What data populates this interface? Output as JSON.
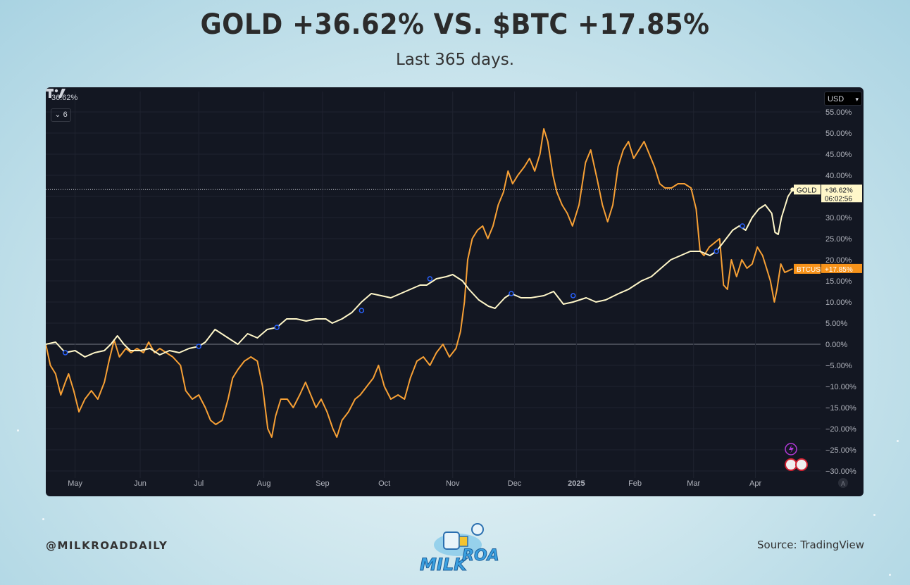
{
  "header": {
    "title": "GOLD +36.62% VS. $BTC +17.85%",
    "subtitle": "Last 365 days."
  },
  "chart_panel": {
    "top_left_value": "36.62%",
    "collapse_button": "6",
    "currency": "USD",
    "gold_label": {
      "name": "GOLD",
      "value": "+36.62%",
      "countdown": "06:02:56"
    },
    "btc_label": {
      "name": "BTCUSD",
      "value": "+17.85%"
    }
  },
  "footer": {
    "handle": "@MILKROADDAILY",
    "source": "Source: TradingView",
    "brand": "MILK ROAD"
  },
  "colors": {
    "gold_line": "#fff7c9",
    "btc_line": "#f7a035",
    "panel_bg": "#131722",
    "grid": "#1f2330"
  },
  "chart_data": {
    "type": "line",
    "title": "GOLD +36.62% VS. $BTC +17.85%",
    "subtitle": "Last 365 days.",
    "x_ticks": [
      "May",
      "Jun",
      "Jul",
      "Aug",
      "Sep",
      "Oct",
      "Nov",
      "Dec",
      "2025",
      "Feb",
      "Mar",
      "Apr"
    ],
    "x_tick_pos": [
      0.6,
      1.6,
      2.5,
      3.5,
      4.4,
      5.35,
      6.4,
      7.35,
      8.3,
      9.2,
      10.1,
      11.05
    ],
    "y_ticks": [
      "55.00%",
      "50.00%",
      "45.00%",
      "40.00%",
      "35.00%",
      "30.00%",
      "25.00%",
      "20.00%",
      "15.00%",
      "10.00%",
      "5.00%",
      "0.00%",
      "−5.00%",
      "−10.00%",
      "−15.00%",
      "−20.00%",
      "−25.00%",
      "−30.00%"
    ],
    "ylim": [
      -30,
      55
    ],
    "xlim": [
      0.15,
      12.05
    ],
    "grid": true,
    "series": [
      {
        "name": "GOLD",
        "final_value": 36.62,
        "points": [
          [
            0.15,
            0
          ],
          [
            0.3,
            0.5
          ],
          [
            0.45,
            -2
          ],
          [
            0.6,
            -1.5
          ],
          [
            0.75,
            -3
          ],
          [
            0.9,
            -2
          ],
          [
            1.05,
            -1.5
          ],
          [
            1.15,
            0
          ],
          [
            1.25,
            2
          ],
          [
            1.35,
            0
          ],
          [
            1.45,
            -1.5
          ],
          [
            1.6,
            -1.5
          ],
          [
            1.75,
            -1
          ],
          [
            1.9,
            -2.5
          ],
          [
            2.05,
            -1.5
          ],
          [
            2.2,
            -2
          ],
          [
            2.35,
            -1
          ],
          [
            2.5,
            -0.5
          ],
          [
            2.6,
            0.5
          ],
          [
            2.75,
            3.5
          ],
          [
            2.85,
            2.5
          ],
          [
            3.0,
            1
          ],
          [
            3.1,
            0
          ],
          [
            3.25,
            2.5
          ],
          [
            3.4,
            1.5
          ],
          [
            3.55,
            3.5
          ],
          [
            3.7,
            4
          ],
          [
            3.85,
            6
          ],
          [
            4.0,
            6
          ],
          [
            4.15,
            5.5
          ],
          [
            4.3,
            6
          ],
          [
            4.45,
            6
          ],
          [
            4.55,
            5
          ],
          [
            4.7,
            6
          ],
          [
            4.85,
            7.5
          ],
          [
            5.0,
            10
          ],
          [
            5.15,
            12
          ],
          [
            5.3,
            11.5
          ],
          [
            5.45,
            11
          ],
          [
            5.6,
            12
          ],
          [
            5.75,
            13
          ],
          [
            5.9,
            14
          ],
          [
            6.0,
            14
          ],
          [
            6.15,
            15.5
          ],
          [
            6.3,
            16
          ],
          [
            6.4,
            16.5
          ],
          [
            6.55,
            15
          ],
          [
            6.65,
            13
          ],
          [
            6.8,
            10.5
          ],
          [
            6.95,
            9
          ],
          [
            7.05,
            8.5
          ],
          [
            7.2,
            11
          ],
          [
            7.3,
            12
          ],
          [
            7.45,
            11
          ],
          [
            7.6,
            11
          ],
          [
            7.8,
            11.5
          ],
          [
            7.95,
            12.5
          ],
          [
            8.1,
            9.5
          ],
          [
            8.25,
            10
          ],
          [
            8.45,
            11
          ],
          [
            8.6,
            10
          ],
          [
            8.75,
            10.5
          ],
          [
            8.95,
            12
          ],
          [
            9.1,
            13
          ],
          [
            9.3,
            15
          ],
          [
            9.45,
            16
          ],
          [
            9.6,
            18
          ],
          [
            9.75,
            20
          ],
          [
            9.9,
            21
          ],
          [
            10.05,
            22
          ],
          [
            10.2,
            22
          ],
          [
            10.35,
            21
          ],
          [
            10.45,
            22
          ],
          [
            10.6,
            25
          ],
          [
            10.7,
            27
          ],
          [
            10.8,
            28
          ],
          [
            10.9,
            27
          ],
          [
            11.0,
            30
          ],
          [
            11.1,
            32
          ],
          [
            11.2,
            33
          ],
          [
            11.3,
            31
          ],
          [
            11.35,
            26.5
          ],
          [
            11.4,
            26
          ],
          [
            11.45,
            30
          ],
          [
            11.55,
            35
          ],
          [
            11.62,
            36.62
          ]
        ]
      },
      {
        "name": "BTCUSD",
        "final_value": 17.85,
        "points": [
          [
            0.15,
            0
          ],
          [
            0.22,
            -5
          ],
          [
            0.3,
            -7
          ],
          [
            0.38,
            -12
          ],
          [
            0.45,
            -9
          ],
          [
            0.5,
            -7
          ],
          [
            0.58,
            -11
          ],
          [
            0.66,
            -16
          ],
          [
            0.75,
            -13
          ],
          [
            0.85,
            -11
          ],
          [
            0.95,
            -13
          ],
          [
            1.05,
            -9
          ],
          [
            1.12,
            -4
          ],
          [
            1.2,
            1
          ],
          [
            1.28,
            -3
          ],
          [
            1.38,
            -1
          ],
          [
            1.46,
            -2
          ],
          [
            1.55,
            -1
          ],
          [
            1.65,
            -2
          ],
          [
            1.73,
            0.5
          ],
          [
            1.82,
            -2
          ],
          [
            1.9,
            -1
          ],
          [
            2.0,
            -2
          ],
          [
            2.1,
            -3
          ],
          [
            2.22,
            -5
          ],
          [
            2.3,
            -11
          ],
          [
            2.4,
            -13
          ],
          [
            2.5,
            -12
          ],
          [
            2.6,
            -15
          ],
          [
            2.68,
            -18
          ],
          [
            2.76,
            -19
          ],
          [
            2.86,
            -18
          ],
          [
            2.95,
            -13
          ],
          [
            3.02,
            -8
          ],
          [
            3.1,
            -6
          ],
          [
            3.2,
            -4
          ],
          [
            3.3,
            -3
          ],
          [
            3.4,
            -4
          ],
          [
            3.48,
            -10
          ],
          [
            3.56,
            -20
          ],
          [
            3.62,
            -22
          ],
          [
            3.68,
            -17
          ],
          [
            3.76,
            -13
          ],
          [
            3.86,
            -13
          ],
          [
            3.95,
            -15
          ],
          [
            4.05,
            -12
          ],
          [
            4.14,
            -9
          ],
          [
            4.22,
            -12
          ],
          [
            4.3,
            -15
          ],
          [
            4.38,
            -13
          ],
          [
            4.47,
            -16
          ],
          [
            4.56,
            -20
          ],
          [
            4.62,
            -22
          ],
          [
            4.7,
            -18
          ],
          [
            4.8,
            -16
          ],
          [
            4.9,
            -13
          ],
          [
            4.98,
            -12
          ],
          [
            5.08,
            -10
          ],
          [
            5.18,
            -8
          ],
          [
            5.26,
            -5
          ],
          [
            5.35,
            -10
          ],
          [
            5.45,
            -13
          ],
          [
            5.56,
            -12
          ],
          [
            5.66,
            -13
          ],
          [
            5.75,
            -8
          ],
          [
            5.85,
            -4
          ],
          [
            5.95,
            -3
          ],
          [
            6.05,
            -5
          ],
          [
            6.15,
            -2
          ],
          [
            6.25,
            0
          ],
          [
            6.35,
            -3
          ],
          [
            6.45,
            -1
          ],
          [
            6.52,
            3
          ],
          [
            6.58,
            10
          ],
          [
            6.63,
            20
          ],
          [
            6.7,
            25
          ],
          [
            6.78,
            27
          ],
          [
            6.86,
            28
          ],
          [
            6.94,
            25
          ],
          [
            7.02,
            28
          ],
          [
            7.1,
            33
          ],
          [
            7.18,
            36
          ],
          [
            7.25,
            41
          ],
          [
            7.32,
            38
          ],
          [
            7.4,
            40
          ],
          [
            7.5,
            42
          ],
          [
            7.58,
            44
          ],
          [
            7.66,
            41
          ],
          [
            7.74,
            45
          ],
          [
            7.8,
            51
          ],
          [
            7.86,
            48
          ],
          [
            7.94,
            40
          ],
          [
            8.0,
            36
          ],
          [
            8.08,
            33
          ],
          [
            8.16,
            31
          ],
          [
            8.24,
            28
          ],
          [
            8.34,
            33
          ],
          [
            8.44,
            43
          ],
          [
            8.52,
            46
          ],
          [
            8.62,
            39
          ],
          [
            8.7,
            33
          ],
          [
            8.78,
            29
          ],
          [
            8.86,
            33
          ],
          [
            8.94,
            42
          ],
          [
            9.02,
            46
          ],
          [
            9.1,
            48
          ],
          [
            9.18,
            44
          ],
          [
            9.26,
            46
          ],
          [
            9.34,
            48
          ],
          [
            9.42,
            45
          ],
          [
            9.5,
            42
          ],
          [
            9.58,
            38
          ],
          [
            9.66,
            37
          ],
          [
            9.76,
            37
          ],
          [
            9.86,
            38
          ],
          [
            9.96,
            38
          ],
          [
            10.06,
            37
          ],
          [
            10.14,
            32
          ],
          [
            10.2,
            22
          ],
          [
            10.26,
            21
          ],
          [
            10.34,
            23
          ],
          [
            10.42,
            24
          ],
          [
            10.5,
            25
          ],
          [
            10.56,
            14
          ],
          [
            10.62,
            13
          ],
          [
            10.68,
            20
          ],
          [
            10.76,
            16
          ],
          [
            10.84,
            20
          ],
          [
            10.92,
            18
          ],
          [
            11.0,
            19
          ],
          [
            11.08,
            23
          ],
          [
            11.16,
            21
          ],
          [
            11.22,
            18
          ],
          [
            11.28,
            15
          ],
          [
            11.34,
            10
          ],
          [
            11.38,
            13
          ],
          [
            11.44,
            19
          ],
          [
            11.5,
            17
          ],
          [
            11.62,
            17.85
          ]
        ]
      }
    ]
  }
}
